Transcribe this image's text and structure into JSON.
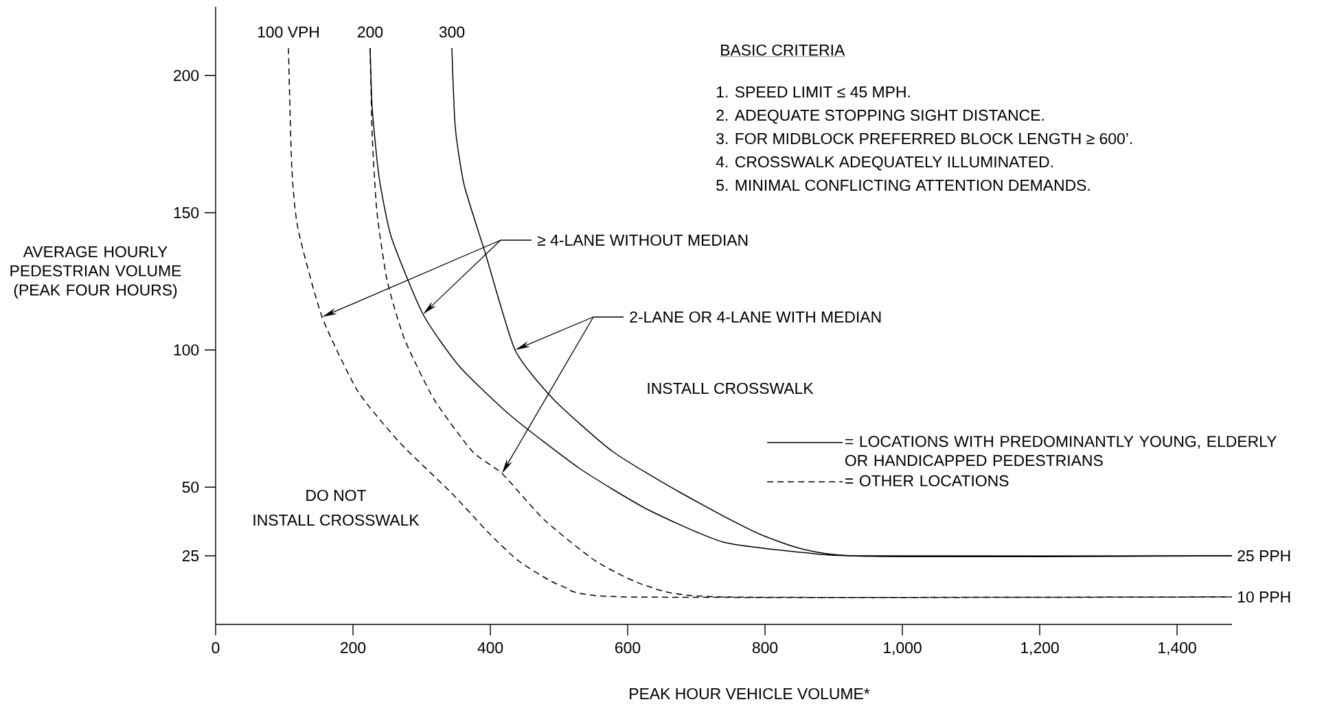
{
  "chart_data": {
    "type": "line",
    "xlabel": "PEAK HOUR VEHICLE VOLUME*",
    "ylabel": "AVERAGE HOURLY PEDESTRIAN VOLUME (PEAK FOUR HOURS)",
    "xlim": [
      0,
      1480
    ],
    "ylim": [
      0,
      225
    ],
    "xticks": [
      0,
      200,
      400,
      600,
      800,
      {
        "value": 1000,
        "label": "1,000"
      },
      {
        "value": 1200,
        "label": "1,200"
      },
      {
        "value": 1400,
        "label": "1,400"
      }
    ],
    "yticks": [
      25,
      50,
      100,
      150,
      200
    ],
    "legend": "right",
    "series": [
      {
        "name": "= LOCATIONS WITH PREDOMINANTLY YOUNG, ELDERLY OR HANDICAPPED PEDESTRIANS",
        "color": "#000000",
        "line_style": "solid",
        "x": [
          225,
          228,
          238,
          256,
          302,
          355,
          430,
          529,
          628,
          739,
          863,
          940,
          1480
        ],
        "values": [
          210,
          188,
          163,
          141,
          113,
          94,
          76,
          57,
          42,
          30,
          26,
          25,
          25
        ]
      },
      {
        "color": "#000000",
        "line_style": "solid",
        "x": [
          344,
          349,
          362,
          393,
          436,
          492,
          578,
          677,
          801,
          925,
          1480
        ],
        "values": [
          210,
          181,
          160,
          135,
          100,
          82,
          63,
          48,
          32,
          25,
          25
        ]
      },
      {
        "name": "= OTHER LOCATIONS",
        "color": "#000000",
        "line_style": "dashed",
        "x": [
          106,
          111,
          120,
          155,
          207,
          269,
          343,
          399,
          442,
          504,
          603,
          1480
        ],
        "values": [
          210,
          166,
          144,
          112,
          85,
          66,
          48,
          33,
          23,
          14,
          10,
          10
        ]
      },
      {
        "color": "#000000",
        "line_style": "dashed",
        "x": [
          225,
          228,
          235,
          250,
          275,
          318,
          374,
          417,
          479,
          554,
          628,
          739,
          1480
        ],
        "values": [
          210,
          178,
          150,
          125,
          104,
          82,
          63,
          55,
          38,
          23,
          14,
          10,
          10
        ]
      }
    ],
    "annotations": [
      "BASIC CRITERIA",
      "1. SPEED LIMIT ≤ 45 MPH.",
      "2. ADEQUATE STOPPING SIGHT DISTANCE.",
      "3. FOR MIDBLOCK PREFERRED BLOCK LENGTH ≥ 600’.",
      "4. CROSSWALK ADEQUATELY ILLUMINATED.",
      "5. MINIMAL CONFLICTING ATTENTION DEMANDS.",
      "≥ 4-LANE WITHOUT MEDIAN",
      "2-LANE OR 4-LANE WITH MEDIAN",
      "INSTALL CROSSWALK",
      "DO NOT",
      "INSTALL CROSSWALK",
      {
        "text": "100 VPH",
        "x": 106,
        "y": 210
      },
      {
        "text": "200",
        "x": 225,
        "y": 210
      },
      {
        "text": "300",
        "x": 344,
        "y": 210
      },
      {
        "text": "25 PPH",
        "x": 1480,
        "y": 25
      },
      {
        "text": "10 PPH",
        "x": 1480,
        "y": 10
      }
    ]
  }
}
